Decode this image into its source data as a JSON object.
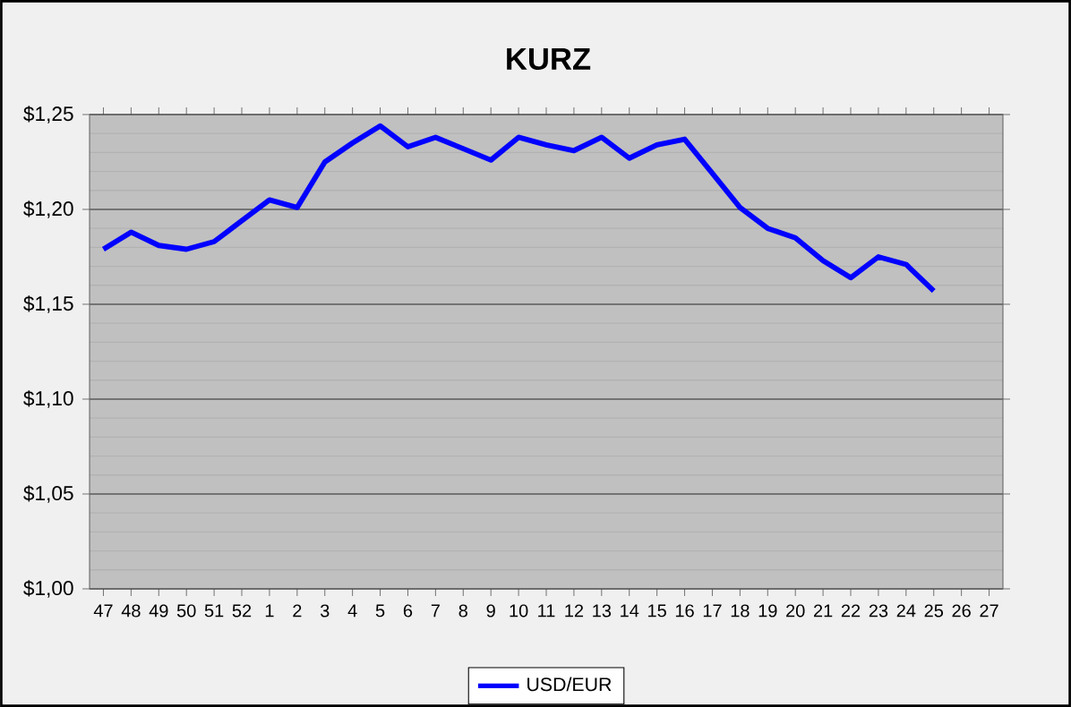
{
  "chart_data": {
    "type": "line",
    "title": "KURZ",
    "categories": [
      "47",
      "48",
      "49",
      "50",
      "51",
      "52",
      "1",
      "2",
      "3",
      "4",
      "5",
      "6",
      "7",
      "8",
      "9",
      "10",
      "11",
      "12",
      "13",
      "14",
      "15",
      "16",
      "17",
      "18",
      "19",
      "20",
      "21",
      "22",
      "23",
      "24",
      "25",
      "26",
      "27"
    ],
    "series": [
      {
        "name": "USD/EUR",
        "color": "#0000ff",
        "values": [
          1.179,
          1.188,
          1.181,
          1.179,
          1.183,
          1.194,
          1.205,
          1.201,
          1.225,
          1.235,
          1.244,
          1.233,
          1.238,
          1.232,
          1.226,
          1.238,
          1.234,
          1.231,
          1.238,
          1.227,
          1.234,
          1.237,
          1.219,
          1.201,
          1.19,
          1.185,
          1.173,
          1.164,
          1.175,
          1.171,
          1.157,
          null,
          null
        ]
      }
    ],
    "ylim": [
      1.0,
      1.25
    ],
    "yticks": [
      {
        "value": 1.0,
        "label": "$1,00"
      },
      {
        "value": 1.05,
        "label": "$1,05"
      },
      {
        "value": 1.1,
        "label": "$1,10"
      },
      {
        "value": 1.15,
        "label": "$1,15"
      },
      {
        "value": 1.2,
        "label": "$1,20"
      },
      {
        "value": 1.25,
        "label": "$1,25"
      }
    ],
    "grid": "y",
    "legend": "bottom",
    "marker": "none",
    "line_style": "solid"
  }
}
